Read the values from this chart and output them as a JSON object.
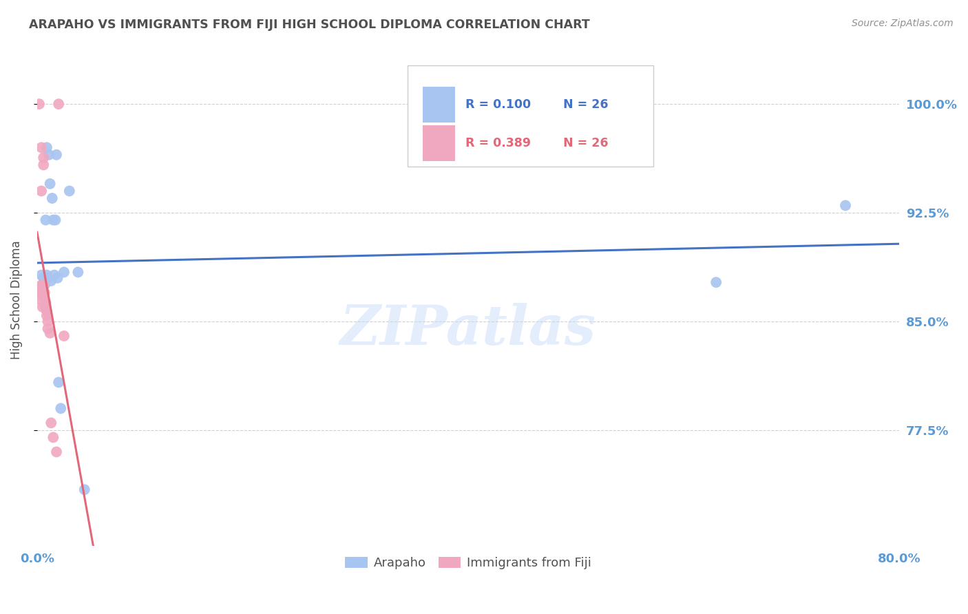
{
  "title": "ARAPAHO VS IMMIGRANTS FROM FIJI HIGH SCHOOL DIPLOMA CORRELATION CHART",
  "source": "Source: ZipAtlas.com",
  "ylabel": "High School Diploma",
  "xlim": [
    0.0,
    0.8
  ],
  "ylim": [
    0.695,
    1.035
  ],
  "y_ticks": [
    1.0,
    0.925,
    0.85,
    0.775
  ],
  "x_ticks": [
    0.0,
    0.8
  ],
  "x_tick_labels": [
    "0.0%",
    "80.0%"
  ],
  "arapaho_x": [
    0.004,
    0.005,
    0.006,
    0.007,
    0.007,
    0.008,
    0.009,
    0.009,
    0.01,
    0.011,
    0.012,
    0.013,
    0.014,
    0.015,
    0.016,
    0.017,
    0.018,
    0.019,
    0.02,
    0.022,
    0.025,
    0.03,
    0.038,
    0.044,
    0.63,
    0.75
  ],
  "arapaho_y": [
    0.882,
    0.875,
    0.88,
    0.878,
    0.875,
    0.92,
    0.97,
    0.882,
    0.88,
    0.965,
    0.945,
    0.878,
    0.935,
    0.92,
    0.882,
    0.92,
    0.965,
    0.88,
    0.808,
    0.79,
    0.884,
    0.94,
    0.884,
    0.734,
    0.877,
    0.93
  ],
  "fiji_x": [
    0.002,
    0.003,
    0.003,
    0.004,
    0.004,
    0.004,
    0.005,
    0.005,
    0.005,
    0.006,
    0.006,
    0.006,
    0.007,
    0.007,
    0.008,
    0.008,
    0.009,
    0.009,
    0.01,
    0.01,
    0.012,
    0.013,
    0.015,
    0.018,
    0.02,
    0.025
  ],
  "fiji_y": [
    1.0,
    0.87,
    0.865,
    0.97,
    0.94,
    0.875,
    0.872,
    0.868,
    0.86,
    0.963,
    0.958,
    0.875,
    0.87,
    0.865,
    0.863,
    0.86,
    0.857,
    0.854,
    0.85,
    0.845,
    0.842,
    0.78,
    0.77,
    0.76,
    1.0,
    0.84
  ],
  "arapaho_color": "#a8c4f0",
  "fiji_color": "#f0a8c0",
  "arapaho_line_color": "#4472c4",
  "fiji_line_color": "#e06878",
  "watermark_text": "ZIPatlas",
  "watermark_color": "#c8ddf8",
  "grid_color": "#d0d0d0",
  "background_color": "#ffffff",
  "title_color": "#505050",
  "axis_label_color": "#5b9bd5",
  "source_color": "#909090",
  "legend_border_color": "#cccccc",
  "legend_r_arapaho": "R = 0.100",
  "legend_n_arapaho": "N = 26",
  "legend_r_fiji": "R = 0.389",
  "legend_n_fiji": "N = 26"
}
